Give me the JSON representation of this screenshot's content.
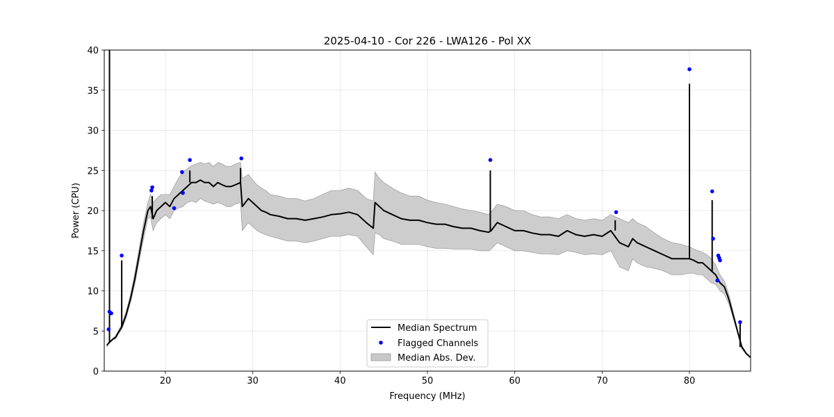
{
  "chart_data": {
    "type": "line",
    "title": "2025-04-10 - Cor 226 - LWA126 - Pol XX",
    "xlabel": "Frequency (MHz)",
    "ylabel": "Power (CPU)",
    "xlim": [
      13,
      87
    ],
    "ylim": [
      0,
      40
    ],
    "xticks": [
      20,
      30,
      40,
      50,
      60,
      70,
      80
    ],
    "yticks": [
      0,
      5,
      10,
      15,
      20,
      25,
      30,
      35,
      40
    ],
    "grid": true,
    "legend": {
      "placement": "lower-center",
      "entries": [
        "Median Spectrum",
        "Flagged Channels",
        "Median Abs. Dev."
      ]
    },
    "series": [
      {
        "name": "Median Spectrum",
        "color": "#000000",
        "x": [
          13.3,
          13.5,
          13.8,
          14.0,
          14.3,
          14.6,
          15.0,
          15.5,
          16.0,
          16.5,
          17.0,
          17.5,
          18.0,
          18.3,
          18.6,
          19.0,
          19.5,
          20.0,
          20.5,
          21.0,
          21.5,
          22.0,
          22.5,
          23.0,
          23.5,
          24.0,
          24.5,
          25.0,
          25.5,
          26.0,
          26.5,
          27.0,
          27.5,
          28.0,
          28.6,
          28.8,
          29.5,
          30.0,
          30.5,
          31.0,
          31.5,
          32.0,
          33.0,
          34.0,
          35.0,
          36.0,
          37.0,
          38.0,
          39.0,
          40.0,
          41.0,
          42.0,
          43.0,
          43.8,
          44.0,
          44.5,
          45.0,
          46.0,
          47.0,
          48.0,
          49.0,
          50.0,
          51.0,
          52.0,
          53.0,
          54.0,
          55.0,
          56.0,
          57.0,
          57.3,
          58.0,
          59.0,
          60.0,
          61.0,
          62.0,
          63.0,
          64.0,
          65.0,
          66.0,
          67.0,
          68.0,
          69.0,
          70.0,
          71.0,
          72.0,
          73.0,
          73.5,
          74.0,
          75.0,
          76.0,
          77.0,
          78.0,
          79.0,
          80.0,
          80.5,
          81.0,
          81.5,
          82.0,
          82.5,
          83.0,
          83.5,
          84.0,
          84.5,
          85.0,
          85.5,
          86.0,
          86.5,
          87.0
        ],
        "y": [
          3.2,
          3.5,
          3.8,
          4.0,
          4.2,
          4.8,
          5.5,
          7.0,
          9.0,
          11.5,
          14.5,
          17.5,
          20.0,
          20.5,
          19.0,
          20.0,
          20.5,
          21.0,
          20.5,
          21.5,
          22.0,
          22.5,
          23.0,
          23.5,
          23.5,
          23.8,
          23.5,
          23.5,
          23.0,
          23.5,
          23.2,
          23.0,
          23.0,
          23.2,
          23.5,
          20.5,
          21.5,
          21.0,
          20.5,
          20.0,
          19.8,
          19.5,
          19.3,
          19.0,
          19.0,
          18.8,
          19.0,
          19.2,
          19.5,
          19.6,
          19.8,
          19.5,
          18.5,
          17.8,
          21.0,
          20.5,
          20.0,
          19.5,
          19.0,
          18.8,
          18.8,
          18.5,
          18.3,
          18.3,
          18.0,
          17.8,
          17.8,
          17.5,
          17.3,
          17.5,
          18.5,
          18.0,
          17.5,
          17.5,
          17.2,
          17.0,
          17.0,
          16.8,
          17.5,
          17.0,
          16.8,
          17.0,
          16.8,
          17.5,
          16.0,
          15.5,
          16.5,
          16.0,
          15.5,
          15.0,
          14.5,
          14.0,
          14.0,
          14.0,
          13.8,
          13.5,
          13.5,
          13.0,
          12.5,
          12.0,
          11.0,
          10.5,
          9.0,
          7.0,
          5.0,
          3.0,
          2.2,
          1.7
        ]
      },
      {
        "name": "Median Abs. Dev.",
        "color": "#c8c8c8",
        "x": [
          13.3,
          13.5,
          13.8,
          14.0,
          14.3,
          14.6,
          15.0,
          15.5,
          16.0,
          16.5,
          17.0,
          17.5,
          18.0,
          18.3,
          18.6,
          19.0,
          19.5,
          20.0,
          20.5,
          21.0,
          21.5,
          22.0,
          22.5,
          23.0,
          23.5,
          24.0,
          24.5,
          25.0,
          25.5,
          26.0,
          26.5,
          27.0,
          27.5,
          28.0,
          28.6,
          28.8,
          29.5,
          30.0,
          30.5,
          31.0,
          31.5,
          32.0,
          33.0,
          34.0,
          35.0,
          36.0,
          37.0,
          38.0,
          39.0,
          40.0,
          41.0,
          42.0,
          43.0,
          43.8,
          44.0,
          44.5,
          45.0,
          46.0,
          47.0,
          48.0,
          49.0,
          50.0,
          51.0,
          52.0,
          53.0,
          54.0,
          55.0,
          56.0,
          57.0,
          57.3,
          58.0,
          59.0,
          60.0,
          61.0,
          62.0,
          63.0,
          64.0,
          65.0,
          66.0,
          67.0,
          68.0,
          69.0,
          70.0,
          71.0,
          72.0,
          73.0,
          73.5,
          74.0,
          75.0,
          76.0,
          77.0,
          78.0,
          79.0,
          80.0,
          80.5,
          81.0,
          81.5,
          82.0,
          82.5,
          83.0,
          83.5,
          84.0,
          84.5,
          85.0,
          85.5,
          86.0,
          86.5,
          87.0
        ],
        "upper": [
          3.3,
          3.6,
          3.9,
          4.1,
          4.4,
          5.0,
          5.8,
          7.4,
          9.5,
          12.2,
          15.3,
          18.5,
          21.0,
          22.0,
          21.0,
          21.5,
          22.0,
          22.0,
          22.0,
          23.0,
          24.0,
          24.8,
          25.2,
          25.6,
          25.8,
          26.0,
          25.8,
          26.0,
          25.5,
          26.0,
          25.8,
          25.5,
          25.5,
          25.8,
          26.0,
          24.0,
          24.5,
          23.8,
          23.2,
          22.8,
          22.5,
          22.0,
          21.8,
          21.5,
          21.5,
          21.2,
          21.5,
          22.0,
          22.5,
          22.5,
          22.8,
          22.5,
          21.5,
          21.2,
          24.8,
          24.0,
          23.5,
          22.8,
          22.2,
          21.8,
          21.8,
          21.3,
          21.0,
          20.8,
          20.5,
          20.2,
          20.0,
          19.8,
          19.5,
          19.8,
          20.8,
          20.5,
          20.0,
          20.0,
          19.5,
          19.2,
          19.2,
          19.0,
          19.5,
          19.0,
          18.8,
          19.0,
          18.8,
          19.5,
          19.0,
          18.5,
          19.0,
          18.5,
          18.0,
          17.2,
          16.5,
          16.0,
          15.8,
          15.5,
          15.2,
          15.0,
          14.8,
          14.5,
          14.0,
          13.2,
          12.0,
          11.2,
          9.6,
          7.4,
          5.2,
          3.2,
          2.3,
          1.7
        ],
        "lower": [
          3.1,
          3.4,
          3.7,
          3.9,
          4.0,
          4.6,
          5.2,
          6.6,
          8.5,
          10.8,
          13.7,
          16.5,
          19.0,
          19.2,
          17.5,
          18.5,
          19.0,
          19.5,
          19.0,
          20.0,
          20.3,
          20.5,
          21.0,
          21.2,
          21.0,
          21.5,
          21.2,
          21.0,
          20.8,
          21.0,
          20.8,
          20.5,
          20.5,
          20.8,
          21.0,
          17.5,
          18.5,
          18.0,
          17.5,
          17.2,
          17.0,
          16.8,
          16.5,
          16.2,
          16.2,
          16.0,
          16.2,
          16.5,
          16.8,
          16.8,
          17.0,
          16.8,
          15.5,
          14.5,
          17.2,
          17.0,
          16.5,
          16.2,
          15.8,
          15.8,
          15.8,
          15.5,
          15.3,
          15.3,
          15.2,
          15.2,
          15.2,
          15.0,
          15.0,
          15.2,
          16.0,
          15.5,
          15.0,
          15.0,
          14.8,
          14.6,
          14.6,
          14.5,
          15.0,
          14.8,
          14.5,
          14.6,
          14.5,
          15.0,
          13.0,
          12.5,
          14.0,
          13.5,
          13.0,
          12.8,
          12.5,
          12.0,
          12.0,
          12.2,
          12.2,
          12.0,
          12.0,
          11.5,
          11.0,
          10.8,
          10.0,
          9.6,
          8.4,
          6.6,
          4.8,
          2.8,
          2.1,
          1.7
        ]
      }
    ],
    "spikes": [
      {
        "x": 13.6,
        "y": 40.0
      },
      {
        "x": 15.0,
        "y": 13.8
      },
      {
        "x": 18.5,
        "y": 21.8
      },
      {
        "x": 22.8,
        "y": 25.0
      },
      {
        "x": 28.6,
        "y": 25.3
      },
      {
        "x": 57.2,
        "y": 25.0
      },
      {
        "x": 71.5,
        "y": 18.8
      },
      {
        "x": 80.0,
        "y": 35.8
      },
      {
        "x": 82.6,
        "y": 21.3
      },
      {
        "x": 85.8,
        "y": 6.0
      }
    ],
    "flagged_channels": {
      "name": "Flagged Channels",
      "color": "#0000ff",
      "points": [
        {
          "x": 13.5,
          "y": 5.2
        },
        {
          "x": 13.6,
          "y": 7.4
        },
        {
          "x": 13.8,
          "y": 7.2
        },
        {
          "x": 15.0,
          "y": 14.4
        },
        {
          "x": 18.4,
          "y": 22.5
        },
        {
          "x": 18.5,
          "y": 22.9
        },
        {
          "x": 21.0,
          "y": 20.3
        },
        {
          "x": 21.9,
          "y": 24.8
        },
        {
          "x": 22.0,
          "y": 22.2
        },
        {
          "x": 22.8,
          "y": 26.3
        },
        {
          "x": 28.7,
          "y": 26.5
        },
        {
          "x": 57.2,
          "y": 26.3
        },
        {
          "x": 71.6,
          "y": 19.8
        },
        {
          "x": 80.0,
          "y": 37.6
        },
        {
          "x": 82.6,
          "y": 22.4
        },
        {
          "x": 82.7,
          "y": 16.5
        },
        {
          "x": 83.2,
          "y": 11.3
        },
        {
          "x": 83.3,
          "y": 14.4
        },
        {
          "x": 83.4,
          "y": 14.1
        },
        {
          "x": 83.5,
          "y": 13.8
        },
        {
          "x": 85.8,
          "y": 6.1
        }
      ]
    }
  }
}
